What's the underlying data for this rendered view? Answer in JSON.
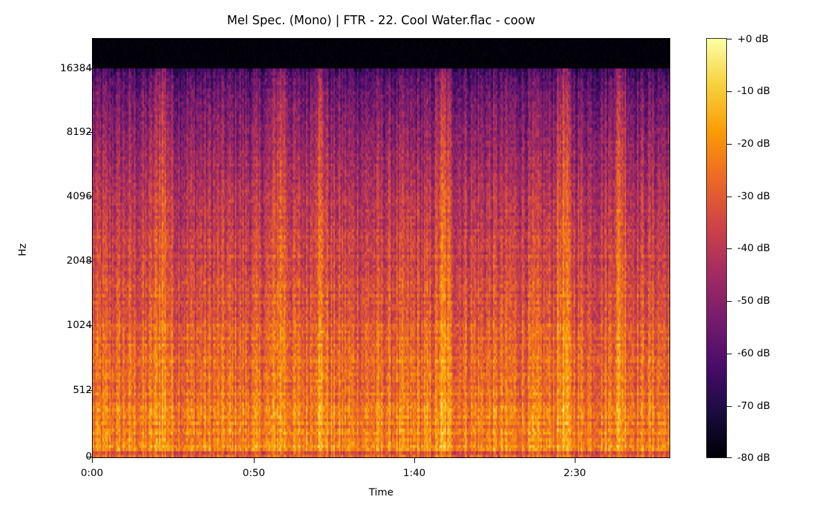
{
  "chart_data": {
    "type": "heatmap",
    "title": "Mel Spec. (Mono) | FTR - 22. Cool Water.flac - coow",
    "xlabel": "Time",
    "ylabel": "Hz",
    "x_ticks": [
      {
        "label": "0:00",
        "seconds": 0
      },
      {
        "label": "0:50",
        "seconds": 50
      },
      {
        "label": "1:40",
        "seconds": 100
      },
      {
        "label": "2:30",
        "seconds": 150
      }
    ],
    "x_range_seconds": [
      0,
      184
    ],
    "y_scale": "mel",
    "y_ticks": [
      {
        "label": "16384",
        "hz": 16384
      },
      {
        "label": "8192",
        "hz": 8192
      },
      {
        "label": "4096",
        "hz": 4096
      },
      {
        "label": "2048",
        "hz": 2048
      },
      {
        "label": "1024",
        "hz": 1024
      },
      {
        "label": "512",
        "hz": 512
      },
      {
        "label": "0",
        "hz": 0
      }
    ],
    "y_range_hz": [
      0,
      22050
    ],
    "colormap": "inferno",
    "colorbar": {
      "range_db": [
        -80,
        0
      ],
      "ticks": [
        "+0 dB",
        "-10 dB",
        "-20 dB",
        "-30 dB",
        "-40 dB",
        "-50 dB",
        "-60 dB",
        "-70 dB",
        "-80 dB"
      ]
    },
    "grid": false,
    "content_notes": {
      "energy_cutoff_hz": 16384,
      "above_cutoff_db": -80,
      "high_band_db_approx": -65,
      "mid_band_db_approx": -30,
      "low_band_db_approx": -20,
      "bright_bursts_seconds": [
        22,
        60,
        72,
        112,
        150,
        168
      ]
    }
  },
  "colors": {
    "inferno_stops": [
      "#000004",
      "#1b0c41",
      "#4a0c6b",
      "#781c6d",
      "#a52c60",
      "#cf4446",
      "#ed6925",
      "#fb9b06",
      "#f7d13d",
      "#fcffa4"
    ]
  }
}
